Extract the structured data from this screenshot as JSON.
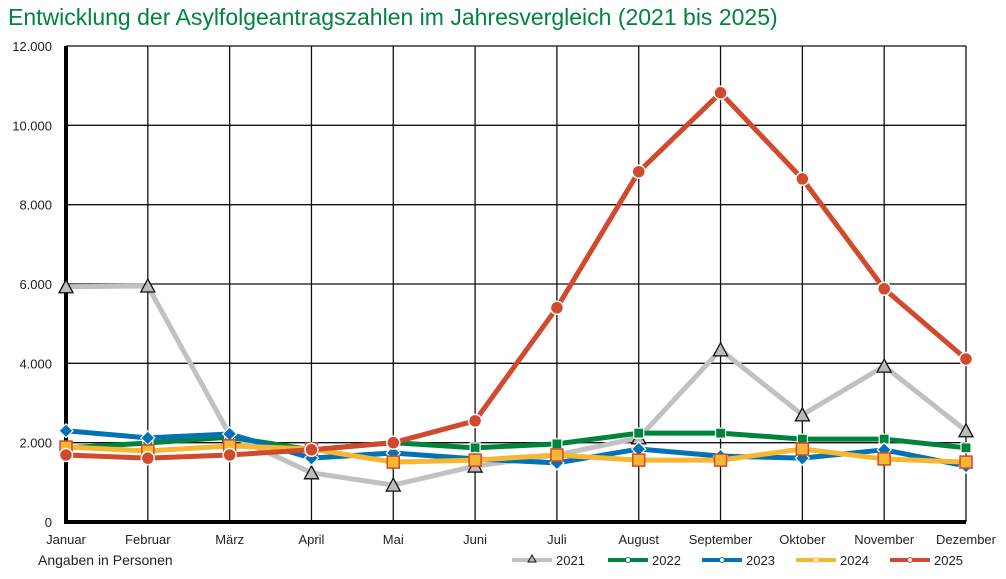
{
  "chart_data": {
    "type": "line",
    "title": "Entwicklung der Asylfolgeantragszahlen im Jahresvergleich (2021 bis 2025)",
    "xlabel": "",
    "ylabel": "",
    "note": "Angaben in Personen",
    "categories": [
      "Januar",
      "Februar",
      "März",
      "April",
      "Mai",
      "Juni",
      "Juli",
      "August",
      "September",
      "Oktober",
      "November",
      "Dezember"
    ],
    "ylim": [
      0,
      12000
    ],
    "yticks": [
      0,
      2000,
      4000,
      6000,
      8000,
      10000,
      12000
    ],
    "ytick_labels": [
      "0",
      "2.000",
      "4.000",
      "6.000",
      "8.000",
      "10.000",
      "12.000"
    ],
    "grid": true,
    "legend": "bottom-right",
    "series": [
      {
        "name": "2021",
        "color": "#c0c2c2",
        "marker": "triangle",
        "values": [
          5930,
          5950,
          2200,
          1240,
          930,
          1410,
          1690,
          2120,
          4340,
          2700,
          3930,
          2300
        ]
      },
      {
        "name": "2022",
        "color": "#00843d",
        "marker": "square",
        "values": [
          1870,
          1990,
          2140,
          1820,
          2000,
          1870,
          1970,
          2240,
          2240,
          2090,
          2090,
          1870
        ]
      },
      {
        "name": "2023",
        "color": "#0072b5",
        "marker": "diamond",
        "values": [
          2300,
          2120,
          2220,
          1610,
          1740,
          1590,
          1490,
          1840,
          1660,
          1610,
          1820,
          1410
        ]
      },
      {
        "name": "2024",
        "color": "#f7b733",
        "marker": "square-outlined",
        "values": [
          1890,
          1790,
          1920,
          1840,
          1510,
          1560,
          1690,
          1560,
          1560,
          1840,
          1590,
          1510
        ]
      },
      {
        "name": "2025",
        "color": "#d1492e",
        "marker": "circle",
        "values": [
          1690,
          1610,
          1690,
          1820,
          2000,
          2550,
          5400,
          8830,
          10820,
          8650,
          5880,
          4110
        ]
      }
    ]
  }
}
